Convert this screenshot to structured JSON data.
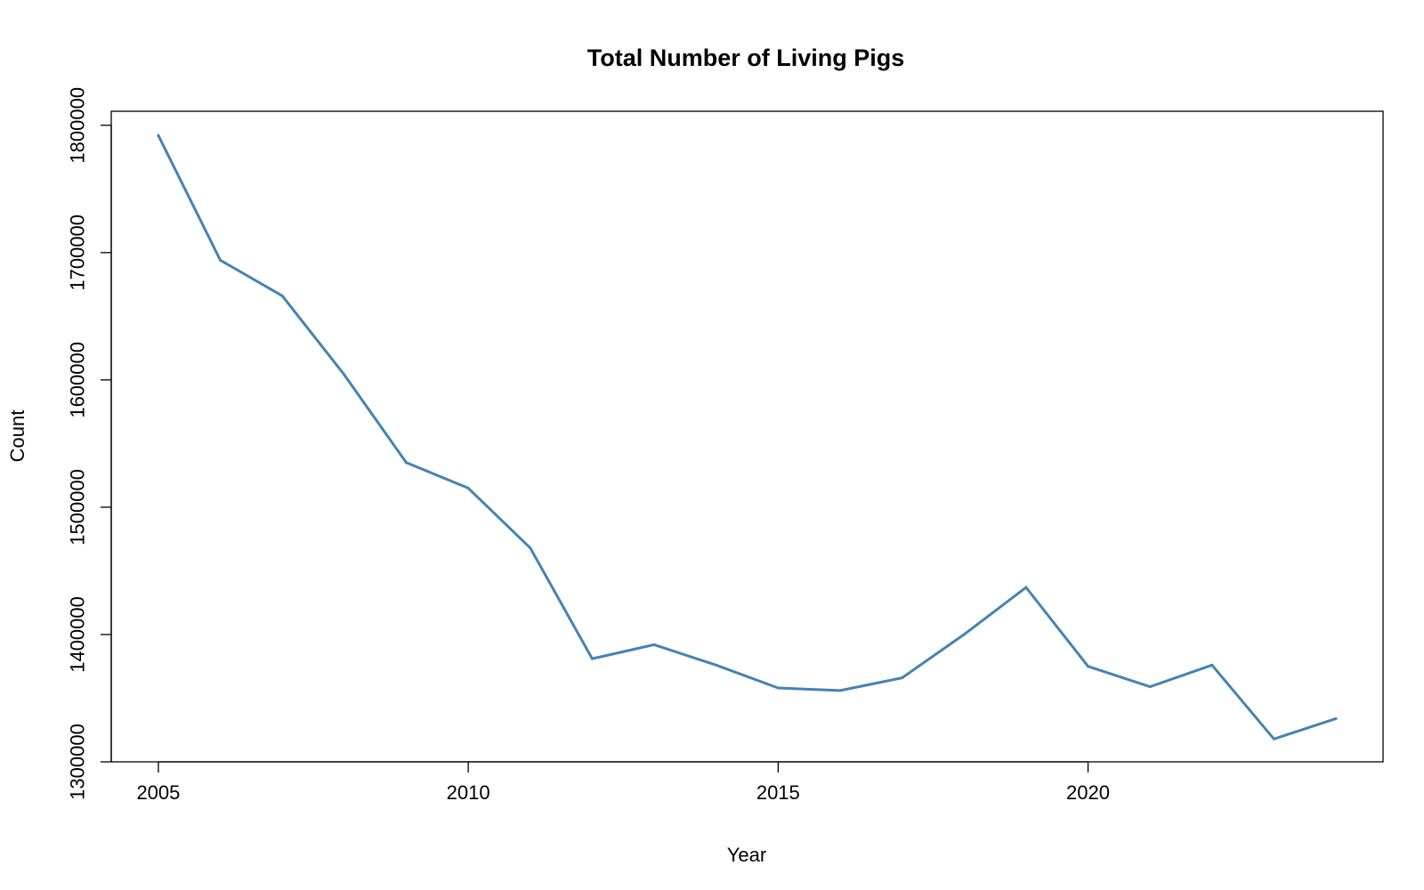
{
  "chart_data": {
    "type": "line",
    "title": "Total Number of Living Pigs",
    "xlabel": "Year",
    "ylabel": "Count",
    "x": [
      2005,
      2006,
      2007,
      2008,
      2009,
      2010,
      2011,
      2012,
      2013,
      2014,
      2015,
      2016,
      2017,
      2018,
      2019,
      2020,
      2021,
      2022,
      2023,
      2024
    ],
    "series": [
      {
        "values": [
          1792000,
          1694000,
          1666000,
          1604000,
          1535000,
          1515000,
          1468000,
          1381000,
          1392000,
          1376000,
          1358000,
          1356000,
          1366000,
          1400000,
          1437000,
          1375000,
          1359000,
          1376000,
          1318000,
          1334000
        ],
        "color": "#4682B4"
      }
    ],
    "xlim": [
      2004.24,
      2024.76
    ],
    "ylim": [
      1300000,
      1811000
    ],
    "xticks": [
      2005,
      2010,
      2015,
      2020
    ],
    "yticks": [
      1300000,
      1400000,
      1500000,
      1600000,
      1700000,
      1800000
    ],
    "xtick_labels": [
      "2005",
      "2010",
      "2015",
      "2020"
    ],
    "ytick_labels": [
      "1300000",
      "1400000",
      "1500000",
      "1600000",
      "1700000",
      "1800000"
    ],
    "grid": false,
    "legend": "none"
  }
}
